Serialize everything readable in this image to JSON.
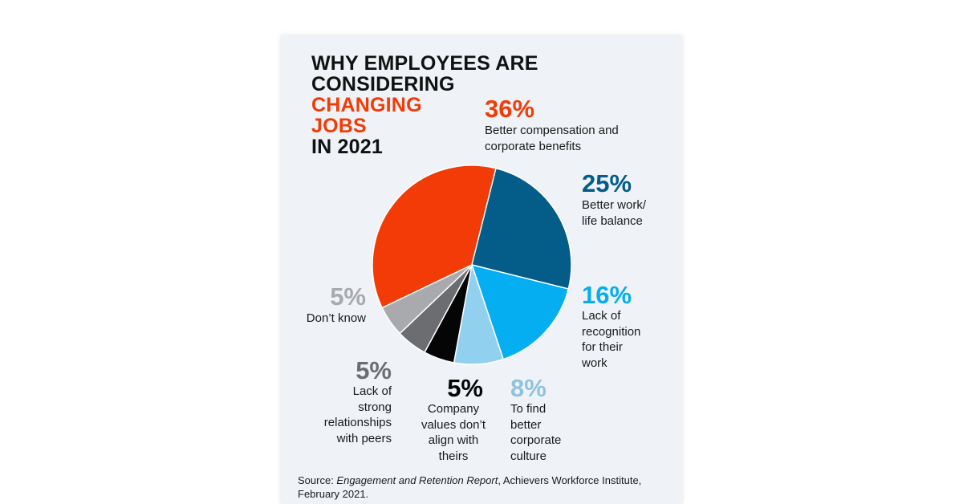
{
  "title": {
    "line1": "WHY EMPLOYEES ARE",
    "line2": "CONSIDERING",
    "line3": "CHANGING",
    "line4": "JOBS",
    "line5": "IN 2021"
  },
  "colors": {
    "compensation": "#f33b07",
    "work_life": "#045c88",
    "recognition": "#05aef0",
    "culture": "#91d1ef",
    "values": "#050505",
    "relationships": "#6c6d70",
    "dont_know": "#a9aaad"
  },
  "chart_data": {
    "type": "pie",
    "unit": "%",
    "slices": [
      {
        "key": "compensation",
        "value": 36,
        "label": "36%",
        "description": "Better compensation and corporate benefits"
      },
      {
        "key": "work_life",
        "value": 25,
        "label": "25%",
        "description": "Better work/ life balance"
      },
      {
        "key": "recognition",
        "value": 16,
        "label": "16%",
        "description": "Lack of recognition for their work"
      },
      {
        "key": "culture",
        "value": 8,
        "label": "8%",
        "description": "To find better corporate culture"
      },
      {
        "key": "values",
        "value": 5,
        "label": "5%",
        "description": "Company values don’t align with theirs"
      },
      {
        "key": "relationships",
        "value": 5,
        "label": "5%",
        "description": "Lack of strong relationships with peers"
      },
      {
        "key": "dont_know",
        "value": 5,
        "label": "5%",
        "description": "Don’t know"
      }
    ]
  },
  "labels": {
    "compensation": {
      "pct": "36%",
      "lines": [
        "Better compensation and",
        "corporate benefits"
      ]
    },
    "work_life": {
      "pct": "25%",
      "lines": [
        "Better work/",
        "life balance"
      ]
    },
    "recognition": {
      "pct": "16%",
      "lines": [
        "Lack of",
        "recognition",
        "for their",
        "work"
      ]
    },
    "culture": {
      "pct": "8%",
      "lines": [
        "To find",
        "better",
        "corporate",
        "culture"
      ]
    },
    "values": {
      "pct": "5%",
      "lines": [
        "Company",
        "values don’t",
        "align with",
        "theirs"
      ]
    },
    "relationships": {
      "pct": "5%",
      "lines": [
        "Lack of",
        "strong",
        "relationships",
        "with peers"
      ]
    },
    "dont_know": {
      "pct": "5%",
      "lines": [
        "Don’t know"
      ]
    }
  },
  "source": {
    "prefix": "Source: ",
    "report": "Engagement and Retention Report",
    "suffix": ", Achievers Workforce Institute,",
    "line2": "February 2021."
  }
}
